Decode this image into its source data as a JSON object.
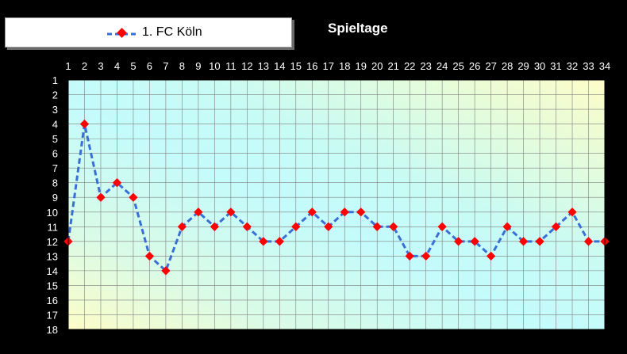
{
  "chart_data": {
    "type": "line",
    "title": "Spieltage",
    "x": [
      1,
      2,
      3,
      4,
      5,
      6,
      7,
      8,
      9,
      10,
      11,
      12,
      13,
      14,
      15,
      16,
      17,
      18,
      19,
      20,
      21,
      22,
      23,
      24,
      25,
      26,
      27,
      28,
      29,
      30,
      31,
      32,
      33,
      34
    ],
    "series": [
      {
        "name": "1. FC Köln",
        "values": [
          12,
          4,
          9,
          8,
          9,
          13,
          14,
          11,
          10,
          11,
          10,
          11,
          12,
          12,
          11,
          10,
          11,
          10,
          10,
          11,
          11,
          13,
          13,
          11,
          12,
          12,
          13,
          11,
          12,
          12,
          11,
          10,
          12,
          12
        ]
      }
    ],
    "xlim": [
      1,
      34
    ],
    "ylim": [
      1,
      18
    ],
    "y_inverted": true,
    "x_axis_position": "top",
    "grid": true,
    "legend_position": "top-left",
    "colors": {
      "line": "#3a6fd8",
      "marker": "#ff0000",
      "background_teal": "#c4fbfb",
      "background_yellow": "#fdfdc8",
      "grid": "#7f7f7f",
      "frame": "#000000"
    }
  }
}
